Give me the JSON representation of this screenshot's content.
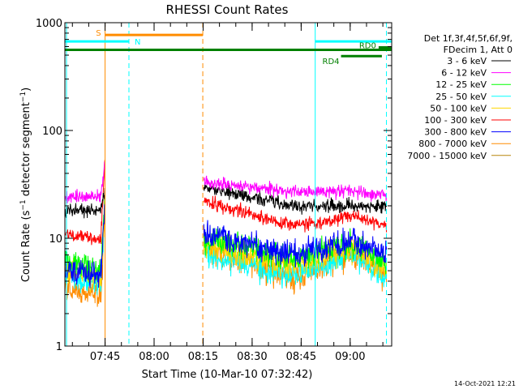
{
  "chart_data": {
    "type": "line",
    "title": "RHESSI Count Rates",
    "xlabel": "Start Time (10-Mar-10 07:32:42)",
    "ylabel_parts": [
      "Count Rate (s",
      "−1",
      " detector segment",
      "−1",
      ")"
    ],
    "y_scale": "log",
    "ylim": [
      1,
      1000
    ],
    "y_ticks": [
      {
        "value": 1,
        "label": "1"
      },
      {
        "value": 10,
        "label": "10"
      },
      {
        "value": 100,
        "label": "100"
      },
      {
        "value": 1000,
        "label": "1000"
      }
    ],
    "xlim_minutes": [
      0,
      100
    ],
    "x_ticks": [
      {
        "minute": 12.3,
        "label": "07:45"
      },
      {
        "minute": 27.3,
        "label": "08:00"
      },
      {
        "minute": 42.3,
        "label": "08:15"
      },
      {
        "minute": 57.3,
        "label": "08:30"
      },
      {
        "minute": 72.3,
        "label": "08:45"
      },
      {
        "minute": 87.3,
        "label": "09:00"
      }
    ],
    "data_gap_minutes": [
      12.3,
      42.5
    ],
    "series": [
      {
        "name": "3 - 6 keV",
        "color": "#000000",
        "pre": [
          0,
          18,
          18,
          30
        ],
        "post": [
          42.5,
          30,
          20,
          20,
          20
        ]
      },
      {
        "name": "6 - 12 keV",
        "color": "#ff00ff",
        "pre": [
          0,
          24,
          24,
          50
        ],
        "post": [
          42.5,
          33,
          27,
          27,
          25
        ]
      },
      {
        "name": "12 - 25 keV",
        "color": "#00ff00",
        "pre": [
          0,
          6,
          5,
          30
        ],
        "post": [
          42.5,
          10,
          6.5,
          9,
          6
        ]
      },
      {
        "name": "25 - 50 keV",
        "color": "#00ffff",
        "pre": [
          0,
          4.5,
          3.8,
          20
        ],
        "post": [
          42.5,
          7,
          4.5,
          7,
          4.5
        ]
      },
      {
        "name": "50 - 100 keV",
        "color": "#ffd700",
        "pre": [
          0,
          5,
          4.2,
          22
        ],
        "post": [
          42.5,
          8.5,
          5.5,
          8,
          5
        ]
      },
      {
        "name": "100 - 300 keV",
        "color": "#ff0000",
        "pre": [
          0,
          11,
          9.5,
          60
        ],
        "post": [
          42.5,
          22,
          13,
          16,
          13
        ]
      },
      {
        "name": "300 - 800 keV",
        "color": "#0000ff",
        "pre": [
          0,
          5,
          4.5,
          25
        ],
        "post": [
          42.5,
          11,
          7,
          9.5,
          7
        ]
      },
      {
        "name": "800 - 7000 keV",
        "color": "#ff8c00",
        "pre": [
          0,
          3.5,
          3,
          15
        ],
        "post": [
          42.5,
          8,
          4.2,
          7,
          4.5
        ]
      },
      {
        "name": "7000 - 15000 keV",
        "color": "#b8860b",
        "pre": [],
        "post": []
      }
    ],
    "legend_header": [
      "Det 1f,3f,4f,5f,6f,9f,",
      "FDecim 1, Att 0"
    ],
    "vertical_markers": [
      {
        "minute": 0.5,
        "color": "#00ffff",
        "style": "solid"
      },
      {
        "minute": 12.3,
        "color": "#ff8c00",
        "style": "solid"
      },
      {
        "minute": 19.6,
        "color": "#00ffff",
        "style": "dashed"
      },
      {
        "minute": 42.2,
        "color": "#ff8c00",
        "style": "dashed"
      },
      {
        "minute": 76.6,
        "color": "#00ffff",
        "style": "solid"
      },
      {
        "minute": 98.4,
        "color": "#00ffff",
        "style": "dashed"
      }
    ],
    "annotations": [
      {
        "label": "S",
        "color": "#ff8c00",
        "count_level": 770,
        "start": 12.3,
        "end": 42.2,
        "label_side": "left"
      },
      {
        "label": "N",
        "color": "#00ffff",
        "count_level": 670,
        "start": 0,
        "end": 19.6,
        "label_side": "after-start-right"
      },
      {
        "label": "N",
        "color": "#00ffff",
        "count_level": 670,
        "start": 76.6,
        "end": 100,
        "label_side": "none"
      },
      {
        "label": "RD0",
        "color": "#008000",
        "count_level": 590,
        "start": 96,
        "end": 100,
        "label_side": "left"
      },
      {
        "label": "",
        "color": "#008000",
        "count_level": 560,
        "start": 0,
        "end": 100,
        "label_side": "none"
      },
      {
        "label": "RD4",
        "color": "#008000",
        "count_level": 490,
        "start": 84.5,
        "end": 97,
        "label_side": "left"
      }
    ],
    "footer": "14-Oct-2021 12:21"
  }
}
